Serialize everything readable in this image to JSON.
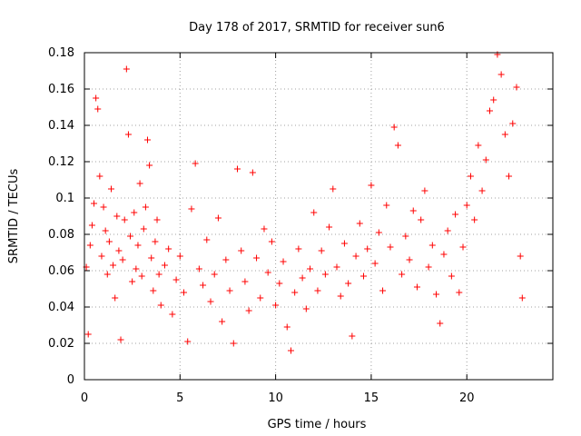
{
  "chart_data": {
    "type": "scatter",
    "title": "Day 178 of 2017, SRMTID for receiver sun6",
    "xlabel": "GPS time / hours",
    "ylabel": "SRMTID / TECUs",
    "xlim": [
      0,
      24.5
    ],
    "ylim": [
      0,
      0.18
    ],
    "xticks": [
      0,
      5,
      10,
      15,
      20
    ],
    "xtick_labels": [
      "0",
      "5",
      "10",
      "15",
      "20"
    ],
    "yticks": [
      0,
      0.02,
      0.04,
      0.06,
      0.08,
      0.1,
      0.12,
      0.14,
      0.16,
      0.18
    ],
    "ytick_labels": [
      "0",
      "0.02",
      "0.04",
      "0.06",
      "0.08",
      "0.1",
      "0.12",
      "0.14",
      "0.16",
      "0.18"
    ],
    "grid": true,
    "marker": "+",
    "color": "#ff0000",
    "series": [
      {
        "name": "sun6",
        "points": [
          [
            0.1,
            0.062
          ],
          [
            0.2,
            0.025
          ],
          [
            0.3,
            0.074
          ],
          [
            0.4,
            0.085
          ],
          [
            0.5,
            0.097
          ],
          [
            0.6,
            0.155
          ],
          [
            0.7,
            0.149
          ],
          [
            0.8,
            0.112
          ],
          [
            0.9,
            0.068
          ],
          [
            1.0,
            0.095
          ],
          [
            1.1,
            0.082
          ],
          [
            1.2,
            0.058
          ],
          [
            1.3,
            0.076
          ],
          [
            1.4,
            0.105
          ],
          [
            1.5,
            0.063
          ],
          [
            1.6,
            0.045
          ],
          [
            1.7,
            0.09
          ],
          [
            1.8,
            0.071
          ],
          [
            1.9,
            0.022
          ],
          [
            2.0,
            0.066
          ],
          [
            2.1,
            0.088
          ],
          [
            2.2,
            0.171
          ],
          [
            2.3,
            0.135
          ],
          [
            2.4,
            0.079
          ],
          [
            2.5,
            0.054
          ],
          [
            2.6,
            0.092
          ],
          [
            2.7,
            0.061
          ],
          [
            2.8,
            0.074
          ],
          [
            2.9,
            0.108
          ],
          [
            3.0,
            0.057
          ],
          [
            3.1,
            0.083
          ],
          [
            3.2,
            0.095
          ],
          [
            3.3,
            0.132
          ],
          [
            3.4,
            0.118
          ],
          [
            3.5,
            0.067
          ],
          [
            3.6,
            0.049
          ],
          [
            3.7,
            0.076
          ],
          [
            3.8,
            0.088
          ],
          [
            3.9,
            0.058
          ],
          [
            4.0,
            0.041
          ],
          [
            4.2,
            0.063
          ],
          [
            4.4,
            0.072
          ],
          [
            4.6,
            0.036
          ],
          [
            4.8,
            0.055
          ],
          [
            5.0,
            0.068
          ],
          [
            5.2,
            0.048
          ],
          [
            5.4,
            0.021
          ],
          [
            5.6,
            0.094
          ],
          [
            5.8,
            0.119
          ],
          [
            6.0,
            0.061
          ],
          [
            6.2,
            0.052
          ],
          [
            6.4,
            0.077
          ],
          [
            6.6,
            0.043
          ],
          [
            6.8,
            0.058
          ],
          [
            7.0,
            0.089
          ],
          [
            7.2,
            0.032
          ],
          [
            7.4,
            0.066
          ],
          [
            7.6,
            0.049
          ],
          [
            7.8,
            0.02
          ],
          [
            8.0,
            0.116
          ],
          [
            8.2,
            0.071
          ],
          [
            8.4,
            0.054
          ],
          [
            8.6,
            0.038
          ],
          [
            8.8,
            0.114
          ],
          [
            9.0,
            0.067
          ],
          [
            9.2,
            0.045
          ],
          [
            9.4,
            0.083
          ],
          [
            9.6,
            0.059
          ],
          [
            9.8,
            0.076
          ],
          [
            10.0,
            0.041
          ],
          [
            10.2,
            0.053
          ],
          [
            10.4,
            0.065
          ],
          [
            10.6,
            0.029
          ],
          [
            10.8,
            0.016
          ],
          [
            11.0,
            0.048
          ],
          [
            11.2,
            0.072
          ],
          [
            11.4,
            0.056
          ],
          [
            11.6,
            0.039
          ],
          [
            11.8,
            0.061
          ],
          [
            12.0,
            0.092
          ],
          [
            12.2,
            0.049
          ],
          [
            12.4,
            0.071
          ],
          [
            12.6,
            0.058
          ],
          [
            12.8,
            0.084
          ],
          [
            13.0,
            0.105
          ],
          [
            13.2,
            0.062
          ],
          [
            13.4,
            0.046
          ],
          [
            13.6,
            0.075
          ],
          [
            13.8,
            0.053
          ],
          [
            14.0,
            0.024
          ],
          [
            14.2,
            0.068
          ],
          [
            14.4,
            0.086
          ],
          [
            14.6,
            0.057
          ],
          [
            14.8,
            0.072
          ],
          [
            15.0,
            0.107
          ],
          [
            15.2,
            0.064
          ],
          [
            15.4,
            0.081
          ],
          [
            15.6,
            0.049
          ],
          [
            15.8,
            0.096
          ],
          [
            16.0,
            0.073
          ],
          [
            16.2,
            0.139
          ],
          [
            16.4,
            0.129
          ],
          [
            16.6,
            0.058
          ],
          [
            16.8,
            0.079
          ],
          [
            17.0,
            0.066
          ],
          [
            17.2,
            0.093
          ],
          [
            17.4,
            0.051
          ],
          [
            17.6,
            0.088
          ],
          [
            17.8,
            0.104
          ],
          [
            18.0,
            0.062
          ],
          [
            18.2,
            0.074
          ],
          [
            18.4,
            0.047
          ],
          [
            18.6,
            0.031
          ],
          [
            18.8,
            0.069
          ],
          [
            19.0,
            0.082
          ],
          [
            19.2,
            0.057
          ],
          [
            19.4,
            0.091
          ],
          [
            19.6,
            0.048
          ],
          [
            19.8,
            0.073
          ],
          [
            20.0,
            0.096
          ],
          [
            20.2,
            0.112
          ],
          [
            20.4,
            0.088
          ],
          [
            20.6,
            0.129
          ],
          [
            20.8,
            0.104
          ],
          [
            21.0,
            0.121
          ],
          [
            21.2,
            0.148
          ],
          [
            21.4,
            0.154
          ],
          [
            21.6,
            0.179
          ],
          [
            21.8,
            0.168
          ],
          [
            22.0,
            0.135
          ],
          [
            22.2,
            0.112
          ],
          [
            22.4,
            0.141
          ],
          [
            22.6,
            0.161
          ],
          [
            22.8,
            0.068
          ],
          [
            22.9,
            0.045
          ]
        ]
      }
    ]
  }
}
